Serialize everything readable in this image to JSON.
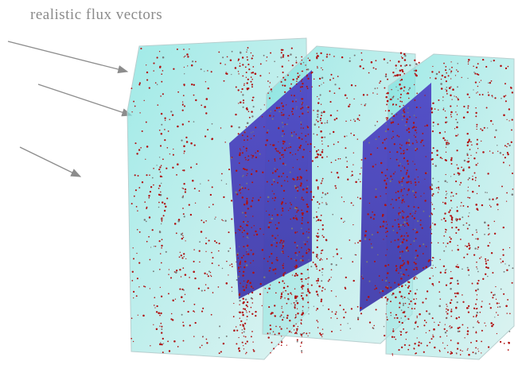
{
  "annotation": {
    "label": "realistic flux vectors"
  }
}
